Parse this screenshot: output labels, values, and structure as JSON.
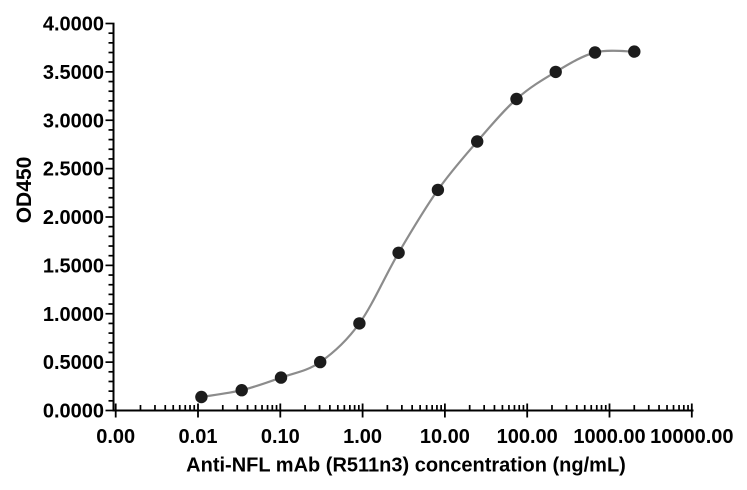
{
  "chart_data": {
    "type": "scatter",
    "title": "",
    "xlabel": "Anti-NFL mAb (R511n3) concentration (ng/mL)",
    "ylabel": "OD450",
    "x_scale": "log",
    "xlim": [
      0.001,
      10000
    ],
    "ylim": [
      0,
      4
    ],
    "grid": false,
    "legend": "none",
    "curve": "smooth-sigmoid-fit-through-points",
    "x_ticks": {
      "values": [
        0.001,
        0.01,
        0.1,
        1,
        10,
        100,
        1000,
        10000
      ],
      "labels": [
        "0.00",
        "0.01",
        "0.10",
        "1.00",
        "10.00",
        "100.00",
        "1000.00",
        "10000.00"
      ]
    },
    "y_ticks": {
      "values": [
        0,
        0.5,
        1,
        1.5,
        2,
        2.5,
        3,
        3.5,
        4
      ],
      "labels": [
        "0.0000",
        "0.5000",
        "1.0000",
        "1.5000",
        "2.0000",
        "2.5000",
        "3.0000",
        "3.5000",
        "4.0000"
      ],
      "minor_step": 0.1
    },
    "points": {
      "x": [
        0.011,
        0.034,
        0.102,
        0.305,
        0.914,
        2.74,
        8.23,
        24.69,
        74.07,
        222.22,
        666.67,
        2000
      ],
      "y": [
        0.14,
        0.21,
        0.34,
        0.5,
        0.9,
        1.63,
        2.28,
        2.78,
        3.22,
        3.5,
        3.7,
        3.71
      ]
    },
    "colors": {
      "curve": "#8c8c8c",
      "points": "#1c1c1c",
      "axis": "#000000",
      "text": "#000000",
      "background": "#ffffff"
    }
  }
}
